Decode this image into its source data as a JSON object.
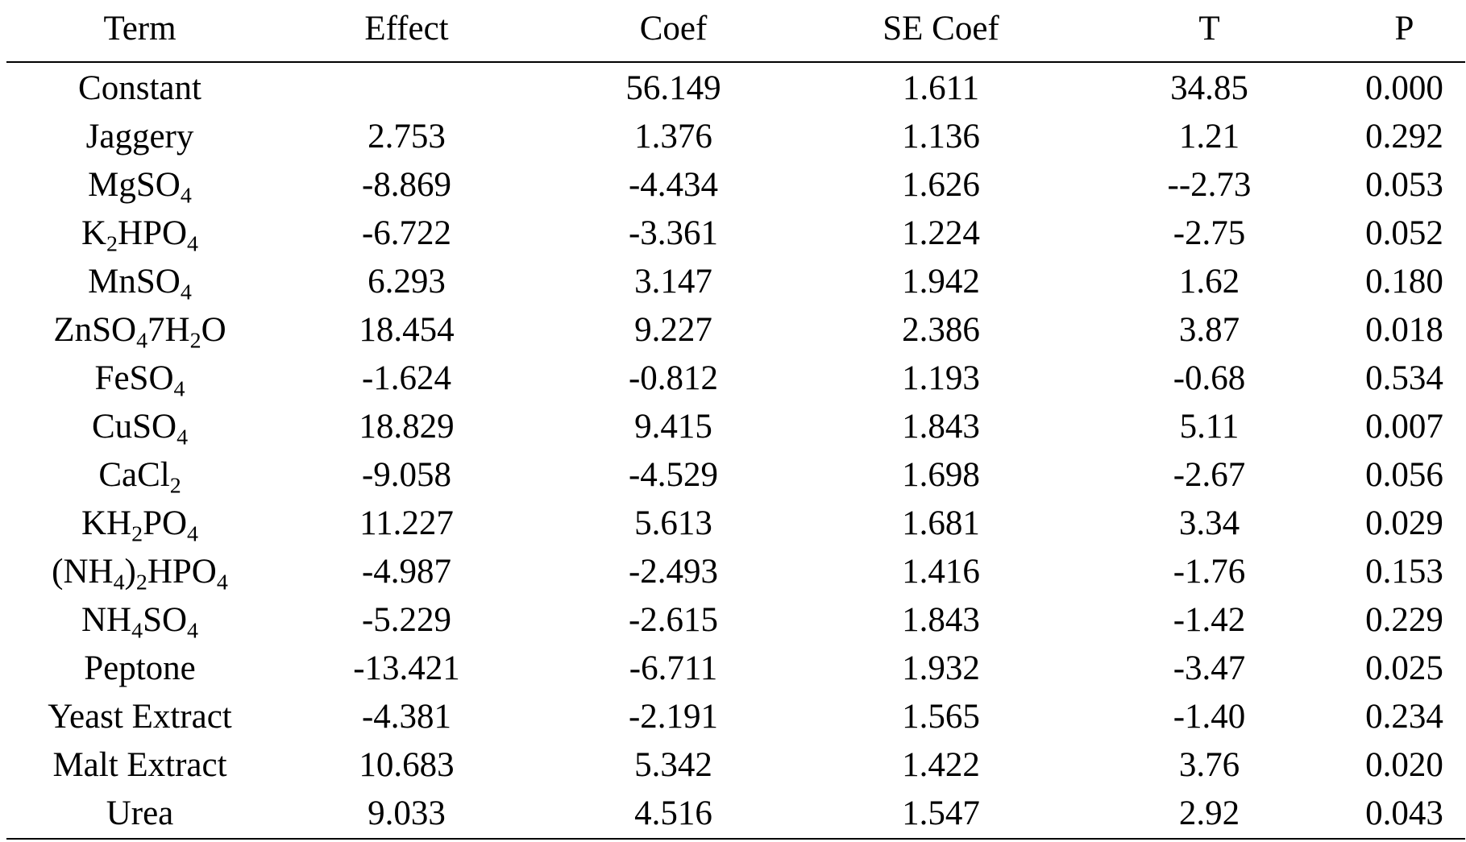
{
  "table": {
    "headers": [
      "Term",
      "Effect",
      "Coef",
      "SE Coef",
      "T",
      "P"
    ],
    "rows": [
      {
        "term": [
          [
            "Constant",
            ""
          ]
        ],
        "effect": "",
        "coef": "56.149",
        "se_coef": "1.611",
        "t": "34.85",
        "p": "0.000"
      },
      {
        "term": [
          [
            "Jaggery",
            ""
          ]
        ],
        "effect": "2.753",
        "coef": "1.376",
        "se_coef": "1.136",
        "t": "1.21",
        "p": "0.292"
      },
      {
        "term": [
          [
            "MgSO",
            "4"
          ]
        ],
        "effect": "-8.869",
        "coef": "-4.434",
        "se_coef": "1.626",
        "t": "--2.73",
        "p": "0.053"
      },
      {
        "term": [
          [
            "K",
            "2"
          ],
          [
            "HPO",
            "4"
          ]
        ],
        "effect": "-6.722",
        "coef": "-3.361",
        "se_coef": "1.224",
        "t": "-2.75",
        "p": "0.052"
      },
      {
        "term": [
          [
            "MnSO",
            "4"
          ]
        ],
        "effect": "6.293",
        "coef": "3.147",
        "se_coef": "1.942",
        "t": "1.62",
        "p": "0.180"
      },
      {
        "term": [
          [
            "ZnSO",
            "4"
          ],
          [
            "7H",
            "2"
          ],
          [
            "O",
            ""
          ]
        ],
        "effect": "18.454",
        "coef": "9.227",
        "se_coef": "2.386",
        "t": "3.87",
        "p": "0.018"
      },
      {
        "term": [
          [
            "FeSO",
            "4"
          ]
        ],
        "effect": "-1.624",
        "coef": "-0.812",
        "se_coef": "1.193",
        "t": "-0.68",
        "p": "0.534"
      },
      {
        "term": [
          [
            "CuSO",
            "4"
          ]
        ],
        "effect": "18.829",
        "coef": "9.415",
        "se_coef": "1.843",
        "t": "5.11",
        "p": "0.007"
      },
      {
        "term": [
          [
            "CaCl",
            "2"
          ]
        ],
        "effect": "-9.058",
        "coef": "-4.529",
        "se_coef": "1.698",
        "t": "-2.67",
        "p": "0.056"
      },
      {
        "term": [
          [
            "KH",
            "2"
          ],
          [
            "PO",
            "4"
          ]
        ],
        "effect": "11.227",
        "coef": "5.613",
        "se_coef": "1.681",
        "t": "3.34",
        "p": "0.029"
      },
      {
        "term": [
          [
            "(NH",
            "4"
          ],
          [
            ")",
            "2"
          ],
          [
            "HPO",
            "4"
          ]
        ],
        "effect": "-4.987",
        "coef": "-2.493",
        "se_coef": "1.416",
        "t": "-1.76",
        "p": "0.153"
      },
      {
        "term": [
          [
            "NH",
            "4"
          ],
          [
            "SO",
            "4"
          ]
        ],
        "effect": "-5.229",
        "coef": "-2.615",
        "se_coef": "1.843",
        "t": "-1.42",
        "p": "0.229"
      },
      {
        "term": [
          [
            "Peptone",
            ""
          ]
        ],
        "effect": "-13.421",
        "coef": "-6.711",
        "se_coef": "1.932",
        "t": "-3.47",
        "p": "0.025"
      },
      {
        "term": [
          [
            "Yeast Extract",
            ""
          ]
        ],
        "effect": "-4.381",
        "coef": "-2.191",
        "se_coef": "1.565",
        "t": "-1.40",
        "p": "0.234"
      },
      {
        "term": [
          [
            "Malt Extract",
            ""
          ]
        ],
        "effect": "10.683",
        "coef": "5.342",
        "se_coef": "1.422",
        "t": "3.76",
        "p": "0.020"
      },
      {
        "term": [
          [
            "Urea",
            ""
          ]
        ],
        "effect": "9.033",
        "coef": "4.516",
        "se_coef": "1.547",
        "t": "2.92",
        "p": "0.043"
      }
    ]
  }
}
